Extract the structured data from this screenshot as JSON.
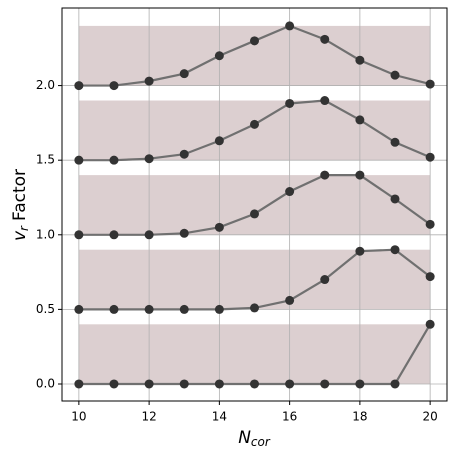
{
  "chart_data": {
    "type": "line",
    "xlabel": {
      "symbol": "N",
      "subscript": "cor"
    },
    "ylabel": {
      "symbol": "v",
      "subscript": "r",
      "text": "Factor"
    },
    "xlim": [
      9.52,
      20.48
    ],
    "ylim": [
      -0.114,
      2.52
    ],
    "xticks": [
      10,
      12,
      14,
      16,
      18,
      20
    ],
    "yticks": [
      {
        "value": 0,
        "label": "0.0"
      },
      {
        "value": 0.5,
        "label": "0.5"
      },
      {
        "value": 1,
        "label": "1.0"
      },
      {
        "value": 1.5,
        "label": "1.5"
      },
      {
        "value": 2,
        "label": "2.0"
      }
    ],
    "grid": true,
    "band_color": "#dccfd0",
    "bands": [
      {
        "x": [
          10,
          20
        ],
        "y": [
          0,
          0.4
        ]
      },
      {
        "x": [
          10,
          20
        ],
        "y": [
          0.5,
          0.9
        ]
      },
      {
        "x": [
          10,
          20
        ],
        "y": [
          1.0,
          1.4
        ]
      },
      {
        "x": [
          10,
          20
        ],
        "y": [
          1.5,
          1.9
        ]
      },
      {
        "x": [
          10,
          20
        ],
        "y": [
          2.0,
          2.4
        ]
      }
    ],
    "line_color": "#707070",
    "marker_color": "#333333",
    "x": [
      10,
      11,
      12,
      13,
      14,
      15,
      16,
      17,
      18,
      19,
      20
    ],
    "series": [
      {
        "values": [
          0,
          0,
          0,
          0,
          0,
          0,
          0,
          0,
          0,
          0,
          0.4
        ]
      },
      {
        "values": [
          0.5,
          0.5,
          0.5,
          0.5,
          0.5,
          0.51,
          0.56,
          0.7,
          0.89,
          0.9,
          0.72
        ]
      },
      {
        "values": [
          1.0,
          1.0,
          1.0,
          1.01,
          1.05,
          1.14,
          1.29,
          1.4,
          1.4,
          1.24,
          1.07
        ]
      },
      {
        "values": [
          1.5,
          1.5,
          1.51,
          1.54,
          1.63,
          1.74,
          1.88,
          1.9,
          1.77,
          1.62,
          1.52
        ]
      },
      {
        "values": [
          2.0,
          2.0,
          2.03,
          2.08,
          2.2,
          2.3,
          2.4,
          2.31,
          2.17,
          2.07,
          2.01
        ]
      }
    ]
  }
}
